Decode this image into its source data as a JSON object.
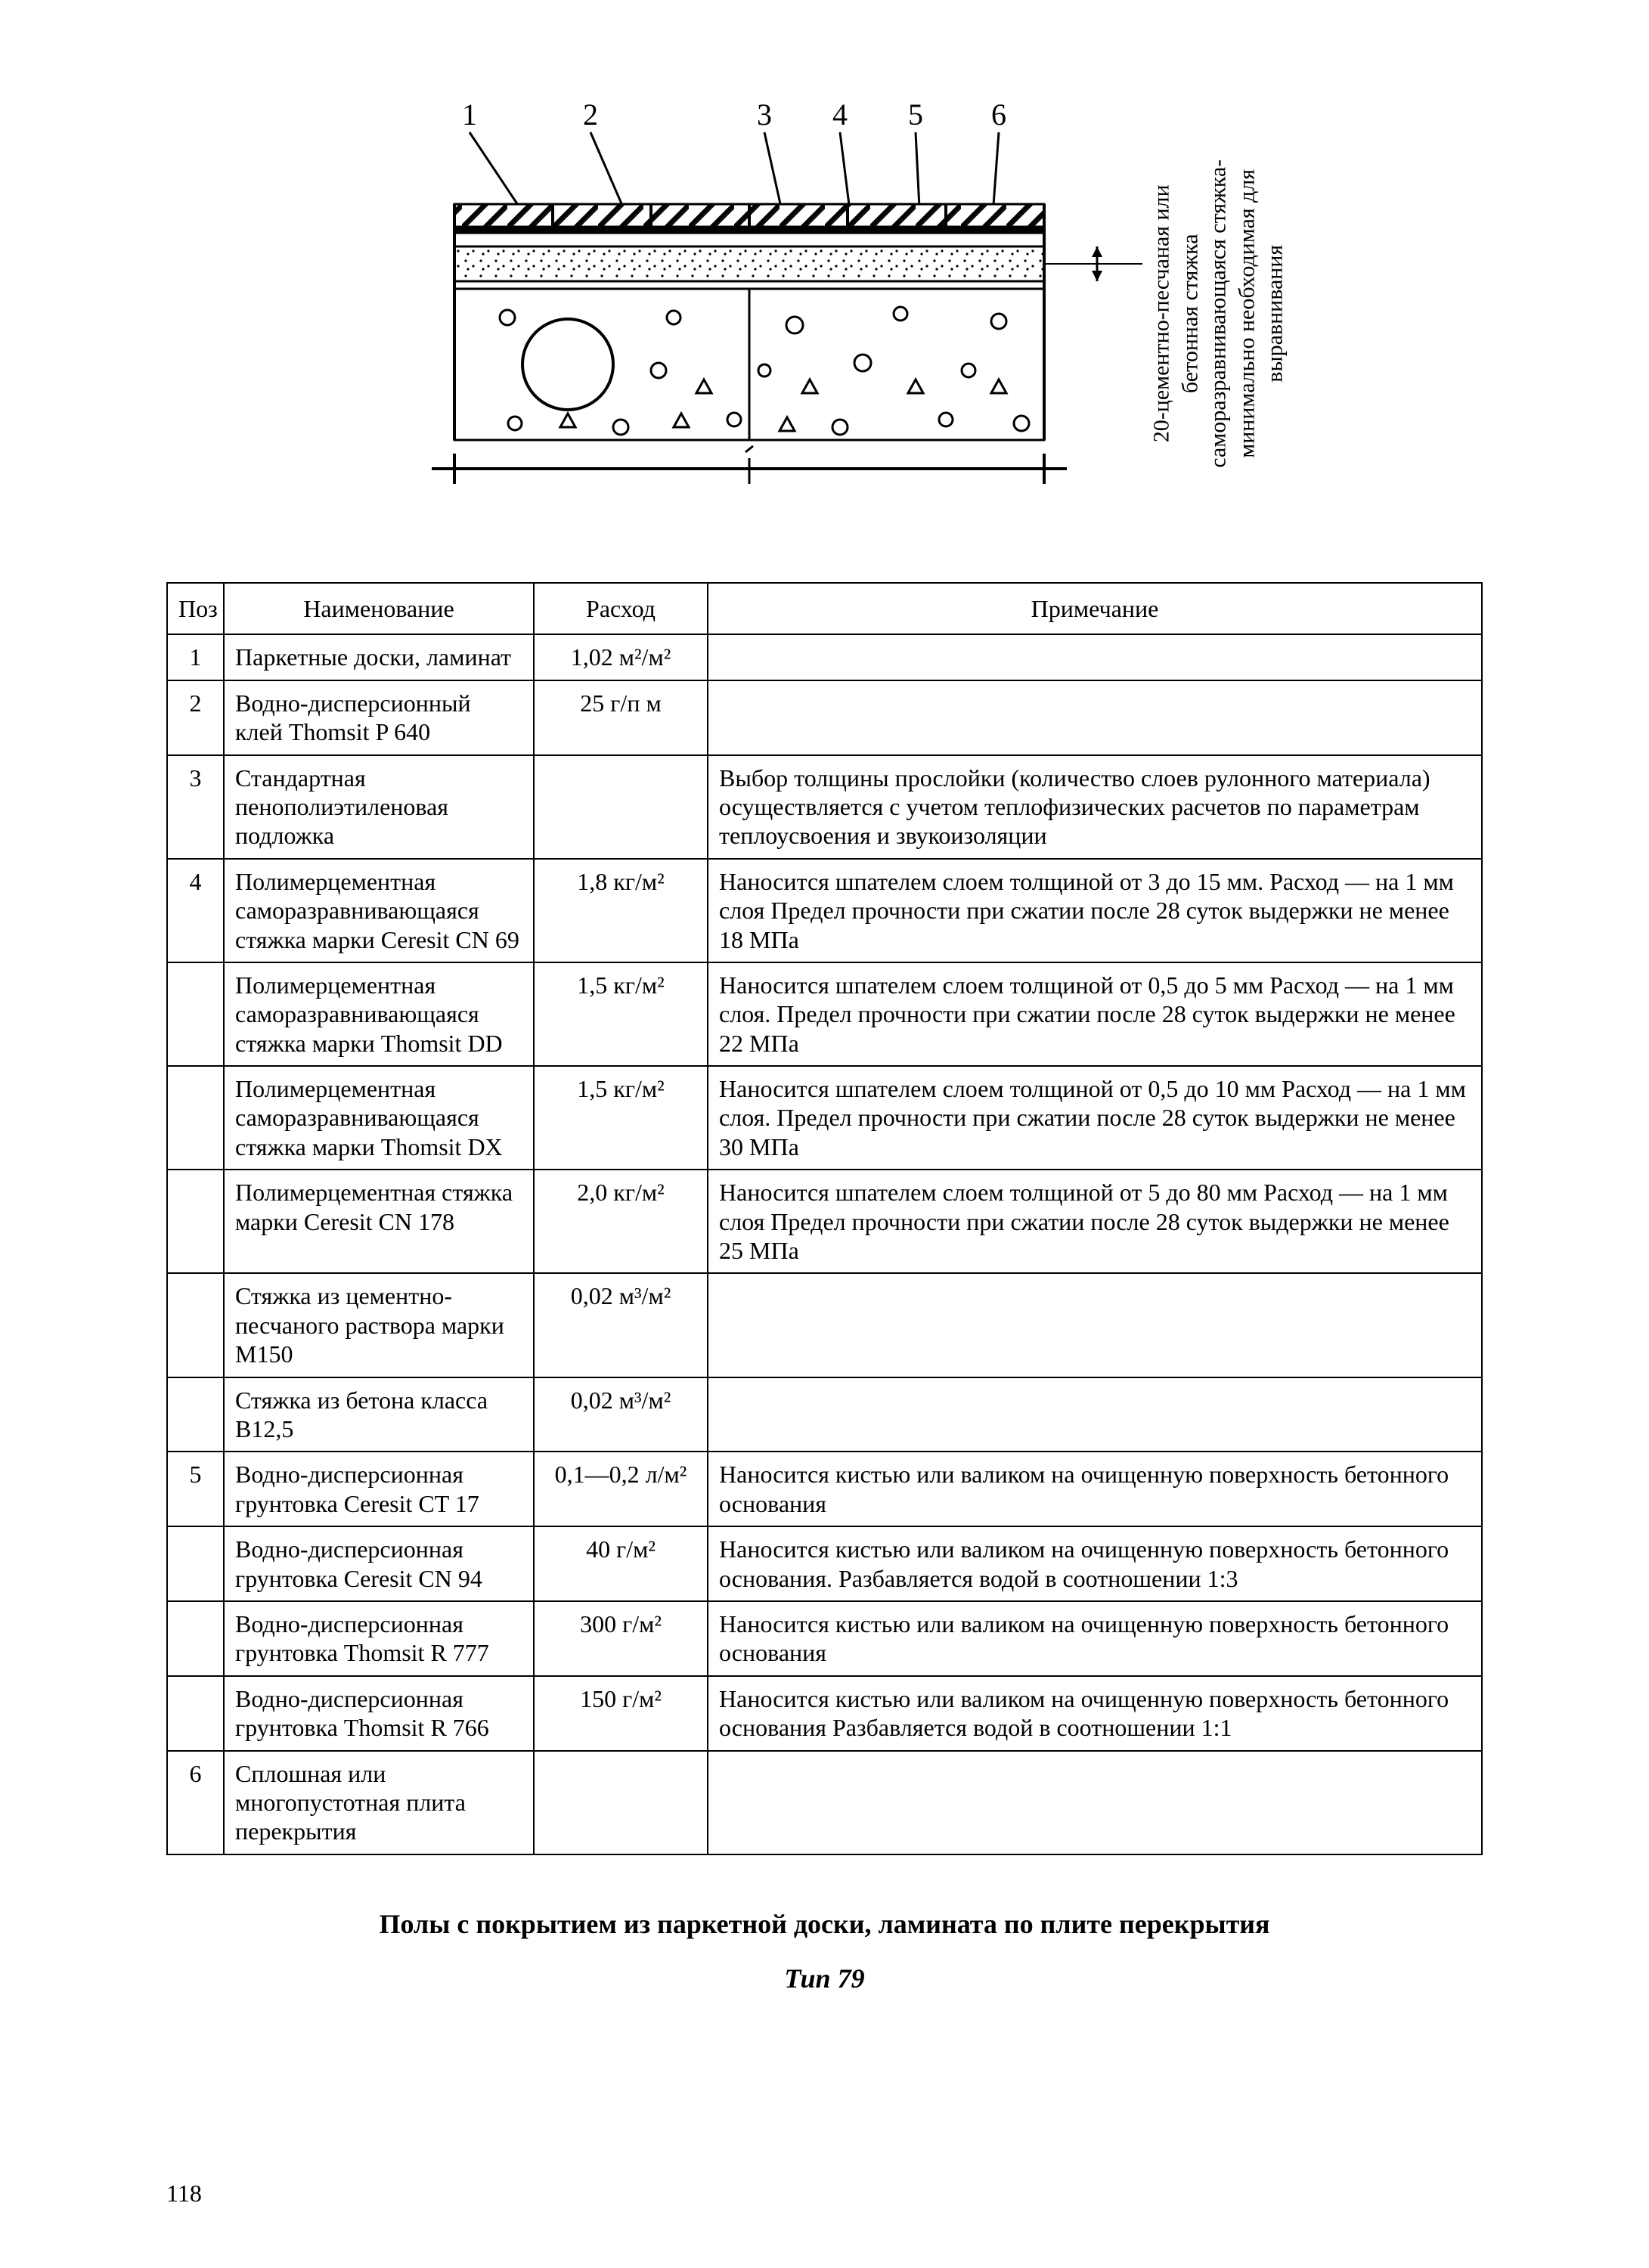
{
  "page_number": "118",
  "caption": "Полы с покрытием из паркетной доски, ламината по плите перекрытия",
  "type_label": "Тип 79",
  "figure": {
    "callouts": [
      "1",
      "2",
      "3",
      "4",
      "5",
      "6"
    ],
    "side_text_lines": [
      "20-цементно-песчаная или",
      "бетонная стяжка",
      "саморазравнивающаяся стяжка-",
      "минимально необходимая для",
      "выравнивания"
    ],
    "colors": {
      "stroke": "#000000",
      "fill_bg": "#ffffff",
      "hatch_bg": "#ffffff"
    }
  },
  "table": {
    "headers": {
      "pos": "Поз",
      "name": "Наименование",
      "consumption": "Расход",
      "note": "Примечание"
    },
    "rows": [
      {
        "pos": "1",
        "name": "Паркетные доски, ламинат",
        "consumption": "1,02 м²/м²",
        "note": ""
      },
      {
        "pos": "2",
        "name": "Водно-дисперсионный клей Thomsit P 640",
        "consumption": "25 г/п м",
        "note": ""
      },
      {
        "pos": "3",
        "name": "Стандартная пенополиэтиленовая подложка",
        "consumption": "",
        "note": "Выбор толщины прослойки (количество слоев рулонного материала) осуществляется с учетом теплофизических расчетов по параметрам теплоусвоения и звукоизоляции"
      },
      {
        "pos": "4",
        "name": "Полимерцементная саморазравнивающаяся стяжка марки Ceresit CN 69",
        "consumption": "1,8 кг/м²",
        "note": "Наносится шпателем слоем толщиной от 3 до 15 мм. Расход — на 1 мм слоя  Предел прочности при сжатии после 28 суток выдержки не менее 18 МПа"
      },
      {
        "pos": "",
        "name": "Полимерцементная саморазравнивающаяся стяжка марки Thomsit DD",
        "consumption": "1,5 кг/м²",
        "note": "Наносится шпателем слоем толщиной от 0,5 до 5 мм  Расход — на 1 мм слоя. Предел прочности при сжатии после 28 суток выдержки не менее 22 МПа"
      },
      {
        "pos": "",
        "name": "Полимерцементная саморазравнивающаяся стяжка марки Thomsit DX",
        "consumption": "1,5 кг/м²",
        "note": "Наносится шпателем слоем толщиной от 0,5 до 10 мм  Расход — на 1 мм слоя. Предел прочности при сжатии после 28 суток выдержки не менее 30 МПа"
      },
      {
        "pos": "",
        "name": "Полимерцементная стяжка марки Ceresit CN 178",
        "consumption": "2,0 кг/м²",
        "note": "Наносится шпателем слоем толщиной от 5 до 80 мм  Расход — на 1 мм слоя  Предел прочности при сжатии после 28 суток выдержки не менее 25 МПа"
      },
      {
        "pos": "",
        "name": "Стяжка из цементно-песчаного раствора марки М150",
        "consumption": "0,02 м³/м²",
        "note": ""
      },
      {
        "pos": "",
        "name": "Стяжка из бетона класса В12,5",
        "consumption": "0,02 м³/м²",
        "note": ""
      },
      {
        "pos": "5",
        "name": "Водно-дисперсионная грунтовка Ceresit CT 17",
        "consumption": "0,1—0,2 л/м²",
        "note": "Наносится кистью или валиком на очищенную поверхность бетонного основания"
      },
      {
        "pos": "",
        "name": "Водно-дисперсионная грунтовка Ceresit CN 94",
        "consumption": "40 г/м²",
        "note": "Наносится кистью или валиком на очищенную поверхность бетонного основания. Разбавляется водой в соотношении 1:3"
      },
      {
        "pos": "",
        "name": "Водно-дисперсионная грунтовка Thomsit R 777",
        "consumption": "300 г/м²",
        "note": "Наносится кистью или валиком на очищенную поверхность бетонного основания"
      },
      {
        "pos": "",
        "name": "Водно-дисперсионная грунтовка Thomsit R 766",
        "consumption": "150 г/м²",
        "note": "Наносится кистью или валиком на очищенную поверхность бетонного основания  Разбавляется водой в соотношении 1:1"
      },
      {
        "pos": "6",
        "name": "Сплошная или многопустотная плита перекрытия",
        "consumption": "",
        "note": ""
      }
    ]
  }
}
